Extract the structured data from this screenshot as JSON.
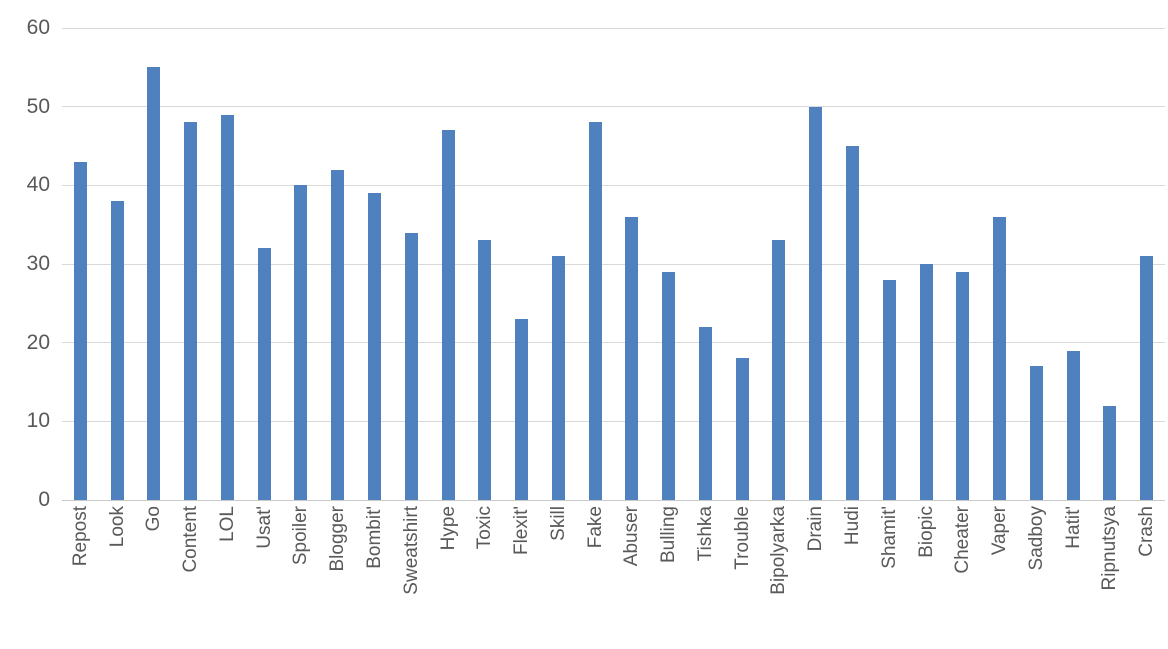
{
  "chart_data": {
    "type": "bar",
    "title": "",
    "xlabel": "",
    "ylabel": "",
    "categories": [
      "Repost",
      "Look",
      "Go",
      "Content",
      "LOL",
      "Usat'",
      "Spoiler",
      "Blogger",
      "Bombit'",
      "Sweatshirt",
      "Hype",
      "Toxic",
      "Flexit'",
      "Skill",
      "Fake",
      "Abuser",
      "Bulling",
      "Tishka",
      "Trouble",
      "Bipolyarka",
      "Drain",
      "Hudi",
      "Shamit'",
      "Biopic",
      "Cheater",
      "Vaper",
      "Sadboy",
      "Hatit'",
      "Ripnutsya",
      "Crash"
    ],
    "values": [
      43,
      38,
      55,
      48,
      49,
      32,
      40,
      42,
      39,
      34,
      47,
      33,
      23,
      31,
      48,
      36,
      29,
      22,
      18,
      33,
      50,
      45,
      28,
      30,
      29,
      36,
      17,
      19,
      12,
      31
    ],
    "y_ticks": [
      0,
      10,
      20,
      30,
      40,
      50,
      60
    ],
    "ylim": [
      0,
      60
    ],
    "grid": true,
    "legend": false,
    "x_label_rotation_deg": 90,
    "colors": {
      "bar": "#4E81BD",
      "gridline": "#D9D9D9",
      "axis_line": "#C9C9C9",
      "tick_label": "#595959",
      "background": "#FFFFFF"
    }
  }
}
